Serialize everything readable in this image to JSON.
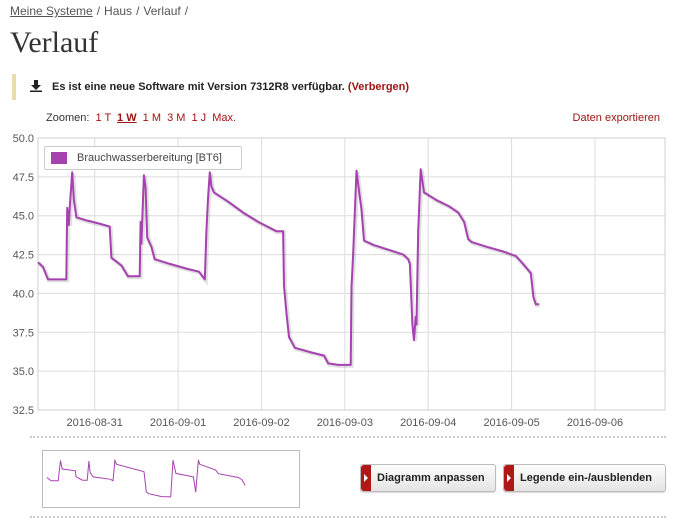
{
  "breadcrumb": {
    "items": [
      "Meine Systeme",
      "Haus",
      "Verlauf"
    ]
  },
  "page_title": "Verlauf",
  "notice": {
    "text": "Es ist eine neue Software mit Version 7312R8 verfügbar.",
    "hide_label": "(Verbergen)"
  },
  "zoom": {
    "label": "Zoomen:",
    "options": [
      "1 T",
      "1 W",
      "1 M",
      "3 M",
      "1 J",
      "Max."
    ],
    "active": "1 W"
  },
  "export_label": "Daten exportieren",
  "buttons": {
    "customize": "Diagramm anpassen",
    "legend_toggle": "Legende ein-/ausblenden"
  },
  "colors": {
    "accent": "#a01414",
    "series": "#a642b0"
  },
  "chart_data": {
    "type": "line",
    "ylim": [
      32.5,
      50.0
    ],
    "yticks": [
      "50.0",
      "47.5",
      "45.0",
      "42.5",
      "40.0",
      "37.5",
      "35.0",
      "32.5"
    ],
    "xticks": [
      "2016-08-31",
      "2016-09-01",
      "2016-09-02",
      "2016-09-03",
      "2016-09-04",
      "2016-09-05",
      "2016-09-06"
    ],
    "xlim": [
      -0.68,
      6.84
    ],
    "grid": true,
    "legend_position": "top-left",
    "series": [
      {
        "name": "Brauchwasserbereitung [BT6]",
        "points": [
          [
            -0.68,
            42.0
          ],
          [
            -0.62,
            41.7
          ],
          [
            -0.56,
            40.9
          ],
          [
            -0.4,
            40.9
          ],
          [
            -0.34,
            40.9
          ],
          [
            -0.33,
            45.5
          ],
          [
            -0.31,
            44.4
          ],
          [
            -0.3,
            45.5
          ],
          [
            -0.27,
            47.8
          ],
          [
            -0.25,
            46.0
          ],
          [
            -0.22,
            44.9
          ],
          [
            -0.1,
            44.7
          ],
          [
            0.05,
            44.5
          ],
          [
            0.18,
            44.3
          ],
          [
            0.2,
            42.3
          ],
          [
            0.32,
            41.8
          ],
          [
            0.4,
            41.1
          ],
          [
            0.52,
            41.1
          ],
          [
            0.54,
            41.1
          ],
          [
            0.55,
            44.6
          ],
          [
            0.56,
            43.2
          ],
          [
            0.59,
            47.6
          ],
          [
            0.61,
            46.8
          ],
          [
            0.63,
            43.6
          ],
          [
            0.68,
            43.0
          ],
          [
            0.72,
            42.2
          ],
          [
            0.9,
            41.9
          ],
          [
            1.1,
            41.6
          ],
          [
            1.25,
            41.4
          ],
          [
            1.32,
            40.9
          ],
          [
            1.34,
            44.0
          ],
          [
            1.36,
            46.2
          ],
          [
            1.38,
            47.8
          ],
          [
            1.4,
            46.9
          ],
          [
            1.43,
            46.5
          ],
          [
            1.6,
            45.9
          ],
          [
            1.78,
            45.2
          ],
          [
            1.96,
            44.6
          ],
          [
            2.18,
            44.0
          ],
          [
            2.26,
            44.0
          ],
          [
            2.27,
            40.5
          ],
          [
            2.3,
            38.7
          ],
          [
            2.33,
            37.2
          ],
          [
            2.4,
            36.5
          ],
          [
            2.6,
            36.2
          ],
          [
            2.75,
            36.0
          ],
          [
            2.8,
            35.5
          ],
          [
            2.92,
            35.4
          ],
          [
            3.07,
            35.4
          ],
          [
            3.08,
            40.4
          ],
          [
            3.1,
            42.6
          ],
          [
            3.14,
            47.9
          ],
          [
            3.17,
            46.6
          ],
          [
            3.2,
            45.4
          ],
          [
            3.23,
            43.4
          ],
          [
            3.35,
            43.1
          ],
          [
            3.53,
            42.8
          ],
          [
            3.7,
            42.5
          ],
          [
            3.76,
            42.2
          ],
          [
            3.78,
            41.9
          ],
          [
            3.81,
            38.0
          ],
          [
            3.83,
            37.0
          ],
          [
            3.85,
            38.5
          ],
          [
            3.86,
            38.0
          ],
          [
            3.88,
            44.0
          ],
          [
            3.91,
            48.0
          ],
          [
            3.95,
            46.5
          ],
          [
            4.1,
            46.0
          ],
          [
            4.25,
            45.6
          ],
          [
            4.36,
            45.2
          ],
          [
            4.43,
            44.6
          ],
          [
            4.48,
            43.5
          ],
          [
            4.52,
            43.3
          ],
          [
            4.7,
            43.0
          ],
          [
            4.9,
            42.7
          ],
          [
            5.05,
            42.4
          ],
          [
            5.12,
            42.0
          ],
          [
            5.23,
            41.3
          ],
          [
            5.26,
            39.8
          ],
          [
            5.29,
            39.3
          ],
          [
            5.33,
            39.3
          ]
        ]
      }
    ]
  },
  "navigator": {
    "points": [
      [
        -0.68,
        42.0
      ],
      [
        -0.56,
        40.9
      ],
      [
        -0.34,
        40.9
      ],
      [
        -0.27,
        47.8
      ],
      [
        -0.22,
        44.9
      ],
      [
        0.18,
        44.3
      ],
      [
        0.2,
        42.3
      ],
      [
        0.4,
        41.1
      ],
      [
        0.54,
        41.1
      ],
      [
        0.59,
        47.6
      ],
      [
        0.63,
        43.6
      ],
      [
        0.72,
        42.2
      ],
      [
        1.25,
        41.4
      ],
      [
        1.32,
        40.9
      ],
      [
        1.38,
        47.8
      ],
      [
        1.43,
        46.5
      ],
      [
        2.26,
        44.0
      ],
      [
        2.33,
        37.2
      ],
      [
        2.4,
        36.5
      ],
      [
        2.8,
        35.5
      ],
      [
        3.07,
        35.4
      ],
      [
        3.14,
        47.9
      ],
      [
        3.23,
        43.4
      ],
      [
        3.76,
        42.2
      ],
      [
        3.83,
        37.0
      ],
      [
        3.91,
        48.0
      ],
      [
        3.95,
        46.5
      ],
      [
        4.43,
        44.6
      ],
      [
        4.52,
        43.3
      ],
      [
        5.12,
        42.0
      ],
      [
        5.23,
        41.3
      ],
      [
        5.33,
        39.3
      ]
    ]
  }
}
